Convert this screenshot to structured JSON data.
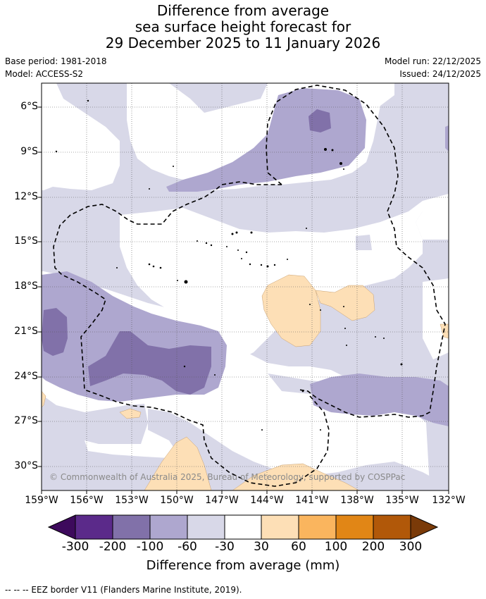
{
  "header": {
    "title_line1": "Difference from average",
    "title_line2": "sea surface height forecast for",
    "title_line3": "29 December 2025 to 11 January 2026"
  },
  "meta": {
    "base_period": "Base period: 1981-2018",
    "model": "Model: ACCESS-S2",
    "model_run": "Model run: 22/12/2025",
    "issued": "Issued: 24/12/2025"
  },
  "map": {
    "lat_ticks": [
      "6°S",
      "9°S",
      "12°S",
      "15°S",
      "18°S",
      "21°S",
      "24°S",
      "27°S",
      "30°S"
    ],
    "lon_ticks": [
      "159°W",
      "156°W",
      "153°W",
      "150°W",
      "147°W",
      "144°W",
      "141°W",
      "138°W",
      "135°W",
      "132°W"
    ],
    "copyright": "© Commonwealth of Australia 2025, Bureau of Meteorology, supported by COSPPac"
  },
  "colorbar": {
    "labels": [
      "-300",
      "-200",
      "-100",
      "-60",
      "-30",
      "30",
      "60",
      "100",
      "200",
      "300"
    ],
    "colors": [
      "#3d0a5c",
      "#5b2a8a",
      "#8171a9",
      "#aea7cf",
      "#d8d8e8",
      "#ffffff",
      "#fddfb6",
      "#fab55e",
      "#e18616",
      "#b15809",
      "#7a3a08"
    ],
    "title": "Difference from average (mm)"
  },
  "footer": {
    "legend": "--  --  -- EEZ border V11 (Flanders Marine Institute, 2019)."
  }
}
